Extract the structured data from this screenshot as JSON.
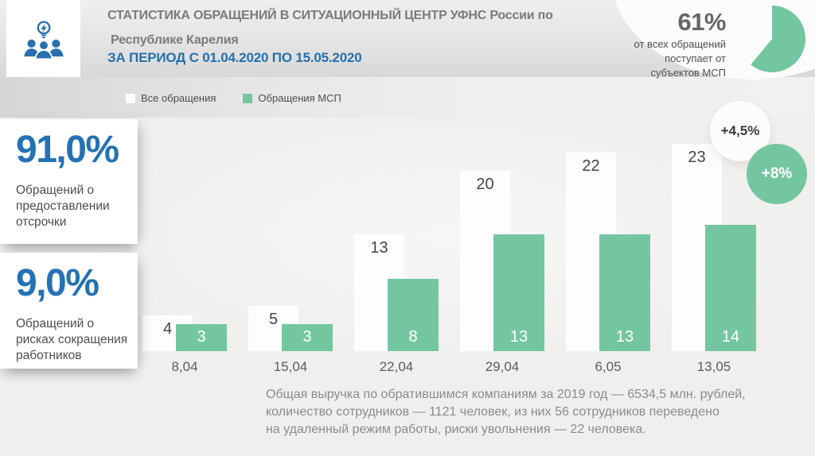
{
  "header": {
    "title_line1": "СТАТИСТИКА ОБРАЩЕНИЙ В СИТУАЦИОННЫЙ ЦЕНТР УФНС России по",
    "title_line2": "Республике Карелия",
    "period_line": "ЗА ПЕРИОД С 01.04.2020 ПО 15.05.2020",
    "logo_icon": "people-lightbulb-icon"
  },
  "kpi": {
    "percent_label": "61%",
    "percent_value": 61,
    "caption_line1": "от всех обращений",
    "caption_line2": "поступает от",
    "caption_line3": "субъектов МСП"
  },
  "legend": {
    "items": [
      {
        "label": "Все обращения",
        "color": "#ffffff"
      },
      {
        "label": "Обращения МСП",
        "color": "#74c6a1"
      }
    ]
  },
  "stat_cards": [
    {
      "value": "91,0%",
      "description": "Обращений о\nпредоставлении\nотсрочки"
    },
    {
      "value": "9,0%",
      "description": "Обращений о\nрисках сокращения\nработников"
    }
  ],
  "chart_data": {
    "type": "bar",
    "categories": [
      "8,04",
      "15,04",
      "22,04",
      "29,04",
      "6,05",
      "13,05"
    ],
    "series": [
      {
        "name": "Все обращения",
        "color": "#fdfdfd",
        "values": [
          4,
          5,
          13,
          20,
          22,
          23
        ]
      },
      {
        "name": "Обращения МСП",
        "color": "#74c6a1",
        "values": [
          3,
          3,
          8,
          13,
          13,
          14
        ]
      }
    ],
    "title": "",
    "xlabel": "",
    "ylabel": "",
    "ylim": [
      0,
      25
    ],
    "grid": false,
    "value_labels": true,
    "legend_position": "top-left"
  },
  "growth_badges": [
    {
      "label": "+4,5%",
      "series": "Все обращения",
      "style": "white"
    },
    {
      "label": "+8%",
      "series": "Обращения МСП",
      "style": "green"
    }
  ],
  "footnote": "Общая выручка по обратившимся компаниям за 2019 год — 6534,5 млн. рублей,\nколичество сотрудников — 1121 человек, из них 56 сотрудников переведено\nна удаленный режим работы, риски увольнения — 22 человека.",
  "colors": {
    "accent_green": "#74c6a1",
    "accent_blue": "#2472b4",
    "title_gray": "#7b7b7b",
    "bar_white": "#fdfdfd",
    "pie_white": "#fcfcfc"
  }
}
